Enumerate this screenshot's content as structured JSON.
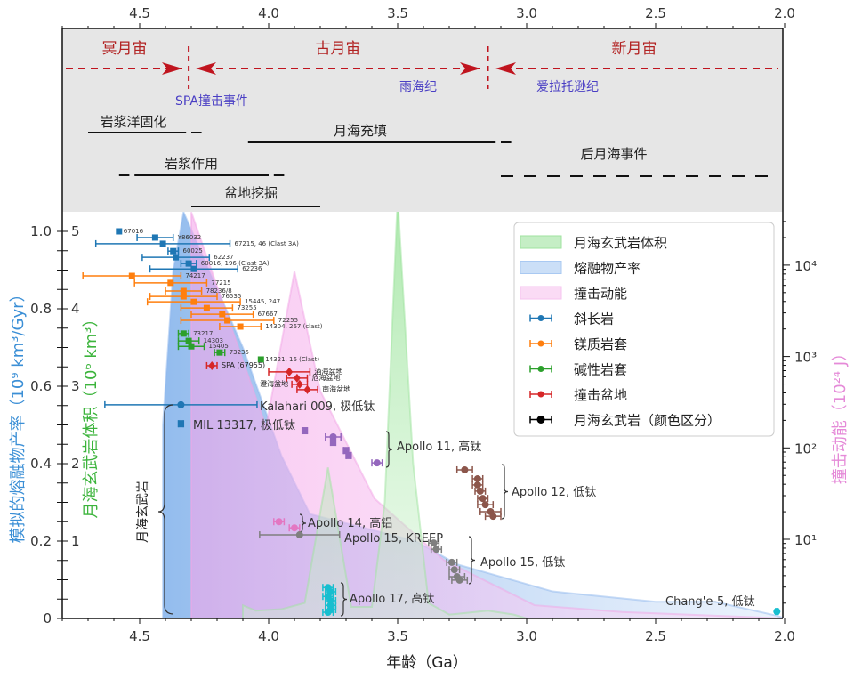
{
  "chart_data": {
    "type": "scatter",
    "xlabel": "年龄（Ga）",
    "xlim": [
      4.8,
      2.0
    ],
    "x_reversed": true,
    "x_ticks": [
      "4.5",
      "4.0",
      "3.5",
      "3.0",
      "2.5",
      "2.0"
    ],
    "ylabel_left_outer": "模拟的熔融物产率（10⁹ km³/Gyr）",
    "ylabel_left_outer_color": "#3b8fd6",
    "ylim_left_outer": [
      0,
      1.05
    ],
    "y_ticks_left_outer": [
      "0",
      "0.2",
      "0.4",
      "0.6",
      "0.8",
      "1.0"
    ],
    "ylabel_left_inner": "月海玄武岩体积（10⁶ km³）",
    "ylabel_left_inner_color": "#3cb43c",
    "ylim_left_inner": [
      0,
      5.25
    ],
    "y_ticks_left_inner": [
      "1",
      "2",
      "3",
      "4",
      "5"
    ],
    "ylabel_right": "撞击动能（10²⁴ J）",
    "ylabel_right_color": "#e58ad8",
    "y_right_scale": "log",
    "y_ticks_right": [
      "10¹",
      "10²",
      "10³",
      "10⁴"
    ],
    "grid": false,
    "legend_placement": "upper-right",
    "legend": [
      {
        "label": "月海玄武岩体积",
        "kind": "area",
        "color": "#9fe39f"
      },
      {
        "label": "熔融物产率",
        "kind": "area",
        "color": "#a9c9f2"
      },
      {
        "label": "撞击动能",
        "kind": "area",
        "color": "#f6c3ef"
      },
      {
        "label": "斜长岩",
        "kind": "errorbar",
        "color": "#1f77b4"
      },
      {
        "label": "镁质岩套",
        "kind": "errorbar",
        "color": "#ff7f0e"
      },
      {
        "label": "碱性岩套",
        "kind": "errorbar",
        "color": "#2ca02c"
      },
      {
        "label": "撞击盆地",
        "kind": "errorbar",
        "color": "#d62728"
      },
      {
        "label": "月海玄武岩（颜色区分）",
        "kind": "errorbar",
        "color": "#000000"
      }
    ],
    "areas": {
      "basalt_volume": {
        "axis": "left_inner",
        "color": "#5fd35f",
        "points": [
          [
            4.1,
            0
          ],
          [
            4.1,
            0.17
          ],
          [
            4.05,
            0.1
          ],
          [
            3.95,
            0.12
          ],
          [
            3.86,
            0.2
          ],
          [
            3.77,
            1.95
          ],
          [
            3.68,
            0.15
          ],
          [
            3.6,
            0.15
          ],
          [
            3.55,
            1.5
          ],
          [
            3.5,
            5.45
          ],
          [
            3.44,
            2.0
          ],
          [
            3.38,
            0.2
          ],
          [
            3.3,
            0.05
          ],
          [
            3.15,
            0.1
          ],
          [
            3.05,
            0.05
          ],
          [
            3.0,
            0
          ]
        ]
      },
      "melt_rate": {
        "axis": "left_outer",
        "color": "#6fa6e8",
        "points": [
          [
            4.41,
            0
          ],
          [
            4.41,
            0.5
          ],
          [
            4.37,
            0.9
          ],
          [
            4.33,
            1.05
          ],
          [
            4.1,
            0.7
          ],
          [
            3.95,
            0.42
          ],
          [
            3.84,
            0.27
          ],
          [
            3.43,
            0.2
          ],
          [
            3.27,
            0.14
          ],
          [
            2.9,
            0.07
          ],
          [
            2.5,
            0.043
          ],
          [
            2.27,
            0.043
          ],
          [
            2.03,
            0.007
          ],
          [
            2.0,
            0
          ]
        ]
      },
      "impact_energy": {
        "axis": "right",
        "color": "#f08be0",
        "points": [
          [
            4.3,
            1.36
          ],
          [
            4.3,
            38000
          ],
          [
            4.01,
            170
          ],
          [
            3.9,
            8500
          ],
          [
            3.8,
            420
          ],
          [
            3.59,
            28
          ],
          [
            3.32,
            5.9
          ],
          [
            2.97,
            1.9
          ],
          [
            2.63,
            1.6
          ],
          [
            2.0,
            1.36
          ]
        ]
      }
    },
    "samples": [
      {
        "group": "斜长岩",
        "color": "#1f77b4",
        "marker": "square",
        "points": [
          {
            "label": "67016",
            "age": 4.58,
            "y": 1.0,
            "err": 0
          },
          {
            "label": "Y86032",
            "age": 4.44,
            "y": 0.984,
            "err": 0.07
          },
          {
            "label": "67215, 46 (Clast 3A)",
            "age": 4.41,
            "y": 0.968,
            "err": 0.26
          },
          {
            "label": "60025",
            "age": 4.37,
            "y": 0.949,
            "err": 0.02
          },
          {
            "label": "62237",
            "age": 4.36,
            "y": 0.933,
            "err": 0.13
          },
          {
            "label": "60016, 196 (Clast 3A)",
            "age": 4.31,
            "y": 0.917,
            "err": 0.03
          },
          {
            "label": "62236",
            "age": 4.29,
            "y": 0.903,
            "err": 0.17
          }
        ]
      },
      {
        "group": "镁质岩套",
        "color": "#ff7f0e",
        "marker": "square",
        "points": [
          {
            "label": "74217",
            "age": 4.53,
            "y": 0.885,
            "err": 0.19
          },
          {
            "label": "77215",
            "age": 4.38,
            "y": 0.867,
            "err": 0.14
          },
          {
            "label": "78236/8",
            "age": 4.33,
            "y": 0.846,
            "err": 0.07
          },
          {
            "label": "76535",
            "age": 4.33,
            "y": 0.832,
            "err": 0.13
          },
          {
            "label": "15445, 247",
            "age": 4.29,
            "y": 0.818,
            "err": 0.18
          },
          {
            "label": "73255",
            "age": 4.24,
            "y": 0.802,
            "err": 0.1
          },
          {
            "label": "67667",
            "age": 4.18,
            "y": 0.786,
            "err": 0.12
          },
          {
            "label": "72255",
            "age": 4.16,
            "y": 0.77,
            "err": 0.18
          },
          {
            "label": "14304, 267 (clast)",
            "age": 4.11,
            "y": 0.754,
            "err": 0.08
          }
        ]
      },
      {
        "group": "碱性岩套",
        "color": "#2ca02c",
        "marker": "square",
        "points": [
          {
            "label": "73217",
            "age": 4.33,
            "y": 0.736,
            "err": 0.02
          },
          {
            "label": "14303",
            "age": 4.31,
            "y": 0.717,
            "err": 0.04
          },
          {
            "label": "15405",
            "age": 4.3,
            "y": 0.703,
            "err": 0.05
          },
          {
            "label": "73235",
            "age": 4.19,
            "y": 0.687,
            "err": 0.02
          },
          {
            "label": "14321, 16 (Clast)",
            "age": 4.03,
            "y": 0.669,
            "err": 0
          }
        ]
      },
      {
        "group": "撞击盆地",
        "color": "#d62728",
        "marker": "diamond",
        "points": [
          {
            "label": "SPA (67955)",
            "age": 4.22,
            "y": 0.653,
            "err": 0.02
          },
          {
            "label": "酒海盆地",
            "age": 3.92,
            "y": 0.637,
            "err": 0.08
          },
          {
            "label": "危海盆地",
            "age": 3.89,
            "y": 0.621,
            "err": 0.04
          },
          {
            "label": "澄海盆地",
            "age": 3.88,
            "y": 0.605,
            "err": 0.03,
            "label_side": "left"
          },
          {
            "label": "南海盆地",
            "age": 3.85,
            "y": 0.591,
            "err": 0.04
          }
        ]
      }
    ],
    "basalts": [
      {
        "label": "Kalahari 009, 极低钛",
        "color": "#1f77b4",
        "points": [
          [
            4.34,
            0.552,
            0.295
          ]
        ]
      },
      {
        "label": "MIL 13317, 极低钛",
        "color": "#1f77b4",
        "points": [
          [
            4.34,
            0.503,
            0.01
          ]
        ]
      },
      {
        "label": "Apollo 11, 高钛",
        "color": "#9467bd",
        "points": [
          [
            3.86,
            0.485,
            0.01
          ],
          [
            3.75,
            0.469,
            0.03
          ],
          [
            3.75,
            0.455,
            0.01
          ],
          [
            3.7,
            0.434,
            0.01
          ],
          [
            3.69,
            0.421,
            0.01
          ],
          [
            3.58,
            0.402,
            0.02
          ]
        ]
      },
      {
        "label": "Apollo 12, 低钛",
        "color": "#8c564b",
        "points": [
          [
            3.24,
            0.384,
            0.03
          ],
          [
            3.19,
            0.361,
            0.02
          ],
          [
            3.19,
            0.345,
            0.02
          ],
          [
            3.18,
            0.329,
            0.02
          ],
          [
            3.17,
            0.31,
            0.02
          ],
          [
            3.16,
            0.294,
            0.03
          ],
          [
            3.14,
            0.276,
            0.04
          ],
          [
            3.13,
            0.264,
            0.03
          ]
        ]
      },
      {
        "label": "Apollo 14, 高铝",
        "color": "#e377c2",
        "points": [
          [
            3.96,
            0.25,
            0.02
          ],
          [
            3.9,
            0.234,
            0.02
          ]
        ]
      },
      {
        "label": "Apollo 15, KREEP",
        "color": "#7f7f7f",
        "points": [
          [
            3.88,
            0.216,
            0.155
          ]
        ]
      },
      {
        "label": "Apollo 15, 低钛",
        "color": "#7f7f7f",
        "points": [
          [
            3.36,
            0.195,
            0.02
          ],
          [
            3.35,
            0.179,
            0.02
          ],
          [
            3.29,
            0.145,
            0.02
          ],
          [
            3.28,
            0.126,
            0.02
          ],
          [
            3.27,
            0.108,
            0.03
          ],
          [
            3.26,
            0.099,
            0.03
          ]
        ]
      },
      {
        "label": "Apollo 17, 高钛",
        "color": "#17becf",
        "points": [
          [
            3.77,
            0.08,
            0.02
          ],
          [
            3.76,
            0.069,
            0.02
          ],
          [
            3.77,
            0.057,
            0.02
          ],
          [
            3.76,
            0.046,
            0.02
          ],
          [
            3.76,
            0.034,
            0.02
          ],
          [
            3.76,
            0.023,
            0.02
          ],
          [
            3.77,
            0.016,
            0.02
          ]
        ]
      },
      {
        "label": "Chang'e-5, 低钛",
        "color": "#17becf",
        "points": [
          [
            2.03,
            0.018,
            0.005
          ]
        ]
      }
    ],
    "basalt_bracket_label": "月海玄武岩",
    "timeline": {
      "eons": [
        {
          "label": "冥月宙"
        },
        {
          "label": "古月宙"
        },
        {
          "label": "新月宙"
        }
      ],
      "boundaries": [
        4.31,
        3.15
      ],
      "periods": [
        {
          "label": "SPA撞击事件"
        },
        {
          "label": "雨海纪"
        },
        {
          "label": "爱拉托逊纪"
        }
      ],
      "events": [
        {
          "label": "岩浆洋固化",
          "solid": [
            4.7,
            4.32
          ],
          "dashed": [
            [
              4.3,
              4.26
            ]
          ]
        },
        {
          "label": "月海充填",
          "solid": [
            4.06,
            3.12
          ],
          "dashed": [
            [
              4.08,
              4.05
            ],
            [
              3.1,
              3.06
            ]
          ]
        },
        {
          "label": "岩浆作用",
          "solid": [
            4.52,
            4.0
          ],
          "dashed": [
            [
              4.58,
              4.54
            ],
            [
              3.98,
              3.94
            ]
          ]
        },
        {
          "label": "盆地挖掘",
          "solid": [
            4.3,
            3.8
          ],
          "dashed": []
        },
        {
          "label": "后月海事件",
          "solid": null,
          "dashed": [
            [
              3.1,
              2.05
            ]
          ]
        }
      ],
      "eon_color": "#c0141e",
      "period_color": "#4a3fc4",
      "background": "#e6e6e6"
    }
  }
}
